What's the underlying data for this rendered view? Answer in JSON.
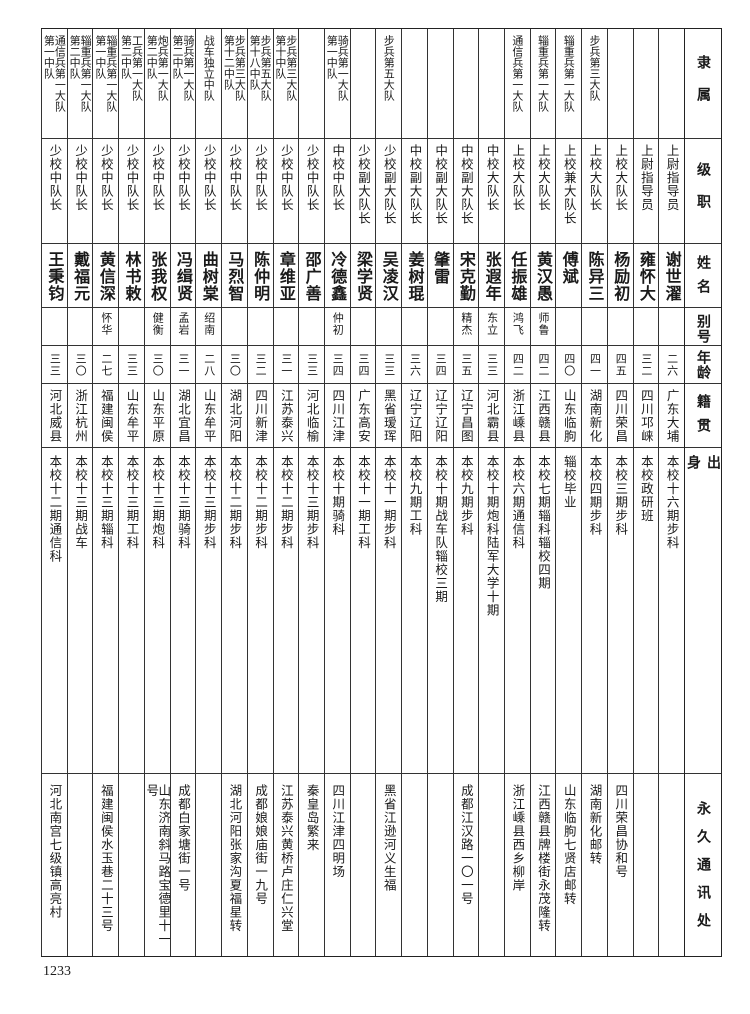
{
  "headers": {
    "unit": "隶属",
    "rank": "级职",
    "name": "姓名",
    "alias": "别号",
    "age": "年龄",
    "native_place": "籍贯",
    "background": "出身",
    "address": "永久通讯处"
  },
  "persons": [
    {
      "unit": "",
      "rank": "上尉指导员",
      "name": "谢世濯",
      "alias": "",
      "age": "二六",
      "native_place": "广东大埔",
      "background": "本校十六期步科",
      "address": ""
    },
    {
      "unit": "",
      "rank": "上尉指导员",
      "name": "雍怀大",
      "alias": "",
      "age": "三二",
      "native_place": "四川邛崃",
      "background": "本校政研班",
      "address": ""
    },
    {
      "unit": "",
      "rank": "上校大队长",
      "name": "杨励初",
      "alias": "",
      "age": "四五",
      "native_place": "四川荣昌",
      "background": "本校三期步科",
      "address": "四川荣昌协和号"
    },
    {
      "unit": "步兵第三大队",
      "rank": "上校大队长",
      "name": "陈异三",
      "alias": "",
      "age": "四一",
      "native_place": "湖南新化",
      "background": "本校四期步科",
      "address": "湖南新化邮转"
    },
    {
      "unit": "辎重兵第一大队",
      "rank": "上校兼大队长",
      "name": "傅斌",
      "alias": "",
      "age": "四〇",
      "native_place": "山东临朐",
      "background": "辎校毕业",
      "address": "山东临朐七贤店邮转"
    },
    {
      "unit": "辎重兵第一大队",
      "rank": "上校大队长",
      "name": "黄汉愚",
      "alias": "师鲁",
      "age": "四二",
      "native_place": "江西赣县",
      "background": "本校七期辎科辎校四期",
      "address": "江西赣县牌楼街永茂隆转"
    },
    {
      "unit": "通信兵第一大队",
      "rank": "上校大队长",
      "name": "任振雄",
      "alias": "鸿飞",
      "age": "四二",
      "native_place": "浙江嵊县",
      "background": "本校六期通信科",
      "address": "浙江嵊县西乡柳岸"
    },
    {
      "unit": "",
      "rank": "中校大队长",
      "name": "张遐年",
      "alias": "东立",
      "age": "三三",
      "native_place": "河北霸县",
      "background": "本校十期炮科陆军大学十期",
      "address": ""
    },
    {
      "unit": "",
      "rank": "中校副大队长",
      "name": "宋克勤",
      "alias": "精杰",
      "age": "三五",
      "native_place": "辽宁昌图",
      "background": "本校九期步科",
      "address": "成都江汉路一〇一号"
    },
    {
      "unit": "",
      "rank": "中校副大队长",
      "name": "肇雷",
      "alias": "",
      "age": "三四",
      "native_place": "辽宁辽阳",
      "background": "本校十期战车队辎校三期",
      "address": ""
    },
    {
      "unit": "",
      "rank": "中校副大队长",
      "name": "姜树琨",
      "alias": "",
      "age": "三六",
      "native_place": "辽宁辽阳",
      "background": "本校九期工科",
      "address": ""
    },
    {
      "unit": "步兵第五大队",
      "rank": "少校副大队长",
      "name": "吴凌汉",
      "alias": "",
      "age": "三三",
      "native_place": "黑省瑷珲",
      "background": "本校十一期步科",
      "address": "黑省江逊河义生福"
    },
    {
      "unit": "",
      "rank": "少校副大队长",
      "name": "梁学贤",
      "alias": "",
      "age": "三四",
      "native_place": "广东高安",
      "background": "本校十一期工科",
      "address": ""
    },
    {
      "unit": "骑兵第一大队\n第一中队",
      "rank": "中校中队长",
      "name": "冷德鑫",
      "alias": "仲初",
      "age": "三四",
      "native_place": "四川江津",
      "background": "本校十期骑科",
      "address": "四川江津四明场"
    },
    {
      "unit": "",
      "rank": "少校中队长",
      "name": "邵广善",
      "alias": "",
      "age": "三三",
      "native_place": "河北临榆",
      "background": "本校十三期步科",
      "address": "秦皇岛繁来"
    },
    {
      "unit": "步兵第三大队\n第十中队",
      "rank": "少校中队长",
      "name": "章维亚",
      "alias": "",
      "age": "三一",
      "native_place": "江苏泰兴",
      "background": "本校十二期步科",
      "address": "江苏泰兴黄桥卢庄仁兴堂"
    },
    {
      "unit": "步兵第五大队\n第十八中队",
      "rank": "少校中队长",
      "name": "陈仲明",
      "alias": "",
      "age": "三二",
      "native_place": "四川新津",
      "background": "本校十二期步科",
      "address": "成都娘娘庙街一九号"
    },
    {
      "unit": "步兵第三大队\n第十二中队",
      "rank": "少校中队长",
      "name": "马烈智",
      "alias": "",
      "age": "三〇",
      "native_place": "湖北河阳",
      "background": "本校十二期步科",
      "address": "湖北河阳张家沟夏福星转"
    },
    {
      "unit": "战车独立中队",
      "rank": "少校中队长",
      "name": "曲树棠",
      "alias": "绍南",
      "age": "二八",
      "native_place": "山东牟平",
      "background": "本校十三期步科",
      "address": ""
    },
    {
      "unit": "骑兵第一大队\n第二中队",
      "rank": "少校中队长",
      "name": "冯缉贤",
      "alias": "孟岩",
      "age": "三一",
      "native_place": "湖北宜昌",
      "background": "本校十三期骑科",
      "address": "成都白家塘街一号"
    },
    {
      "unit": "炮兵第一大队\n第二中队",
      "rank": "少校中队长",
      "name": "张我权",
      "alias": "健衡",
      "age": "三〇",
      "native_place": "山东平原",
      "background": "本校十三期炮科",
      "address": "山东济南斜马路宝德里十一号"
    },
    {
      "unit": "工兵第一大队\n第二中队",
      "rank": "少校中队长",
      "name": "林书敕",
      "alias": "",
      "age": "三三",
      "native_place": "山东牟平",
      "background": "本校十三期工科",
      "address": ""
    },
    {
      "unit": "辎重兵第一大队\n第一中队",
      "rank": "少校中队长",
      "name": "黄信深",
      "alias": "怀华",
      "age": "二七",
      "native_place": "福建闽侯",
      "background": "本校十三期辎科",
      "address": "福建闽侯水玉巷二十三号"
    },
    {
      "unit": "辎重兵第一大队\n第二中队",
      "rank": "少校中队长",
      "name": "戴福元",
      "alias": "",
      "age": "三〇",
      "native_place": "浙江杭州",
      "background": "本校十三期战车",
      "address": ""
    },
    {
      "unit": "通信兵第一大队\n第一中队",
      "rank": "少校中队长",
      "name": "王秉钧",
      "alias": "",
      "age": "三三",
      "native_place": "河北威县",
      "background": "本校十二期通信科",
      "address": "河北南宫七级镇高亮村"
    }
  ],
  "page_number": "1233"
}
